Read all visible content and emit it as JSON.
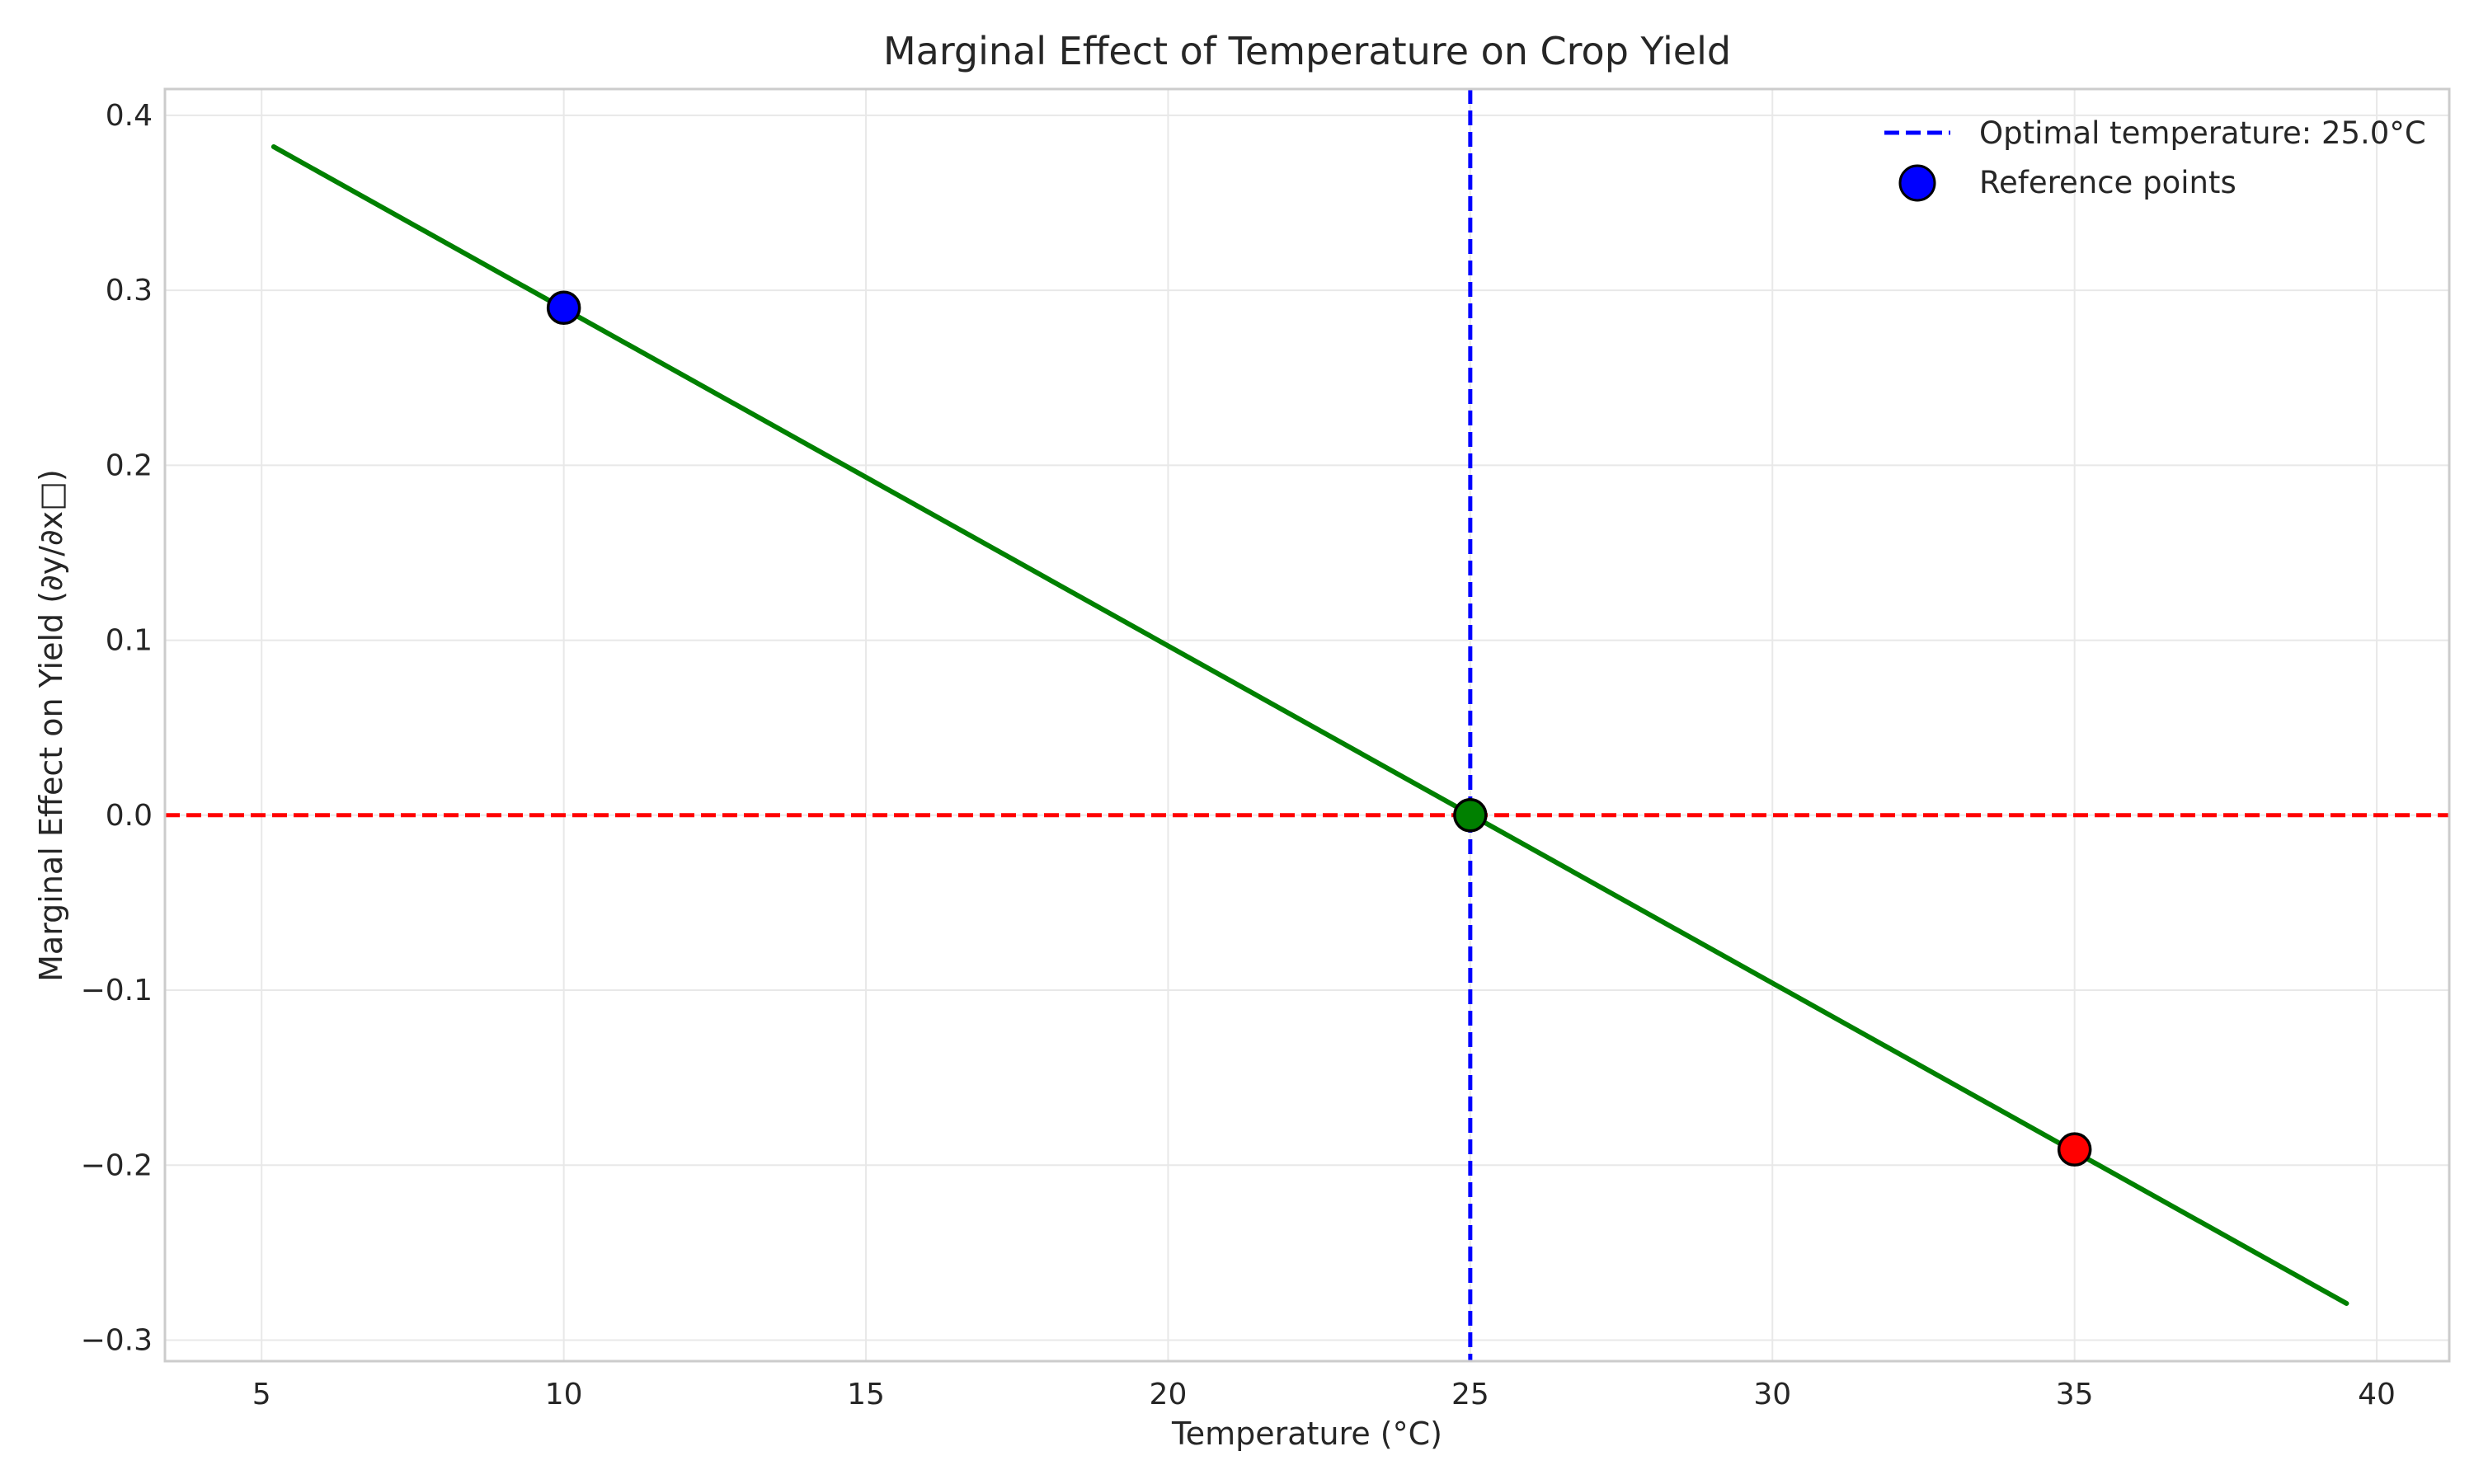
{
  "chart_data": {
    "type": "line",
    "title": "Marginal Effect of Temperature on Crop Yield",
    "xlabel": "Temperature (°C)",
    "ylabel": "Marginal Effect on Yield (∂y/∂x□)",
    "xlim": [
      3.4,
      41.2
    ],
    "ylim": [
      -0.312,
      0.415
    ],
    "xticks": [
      5,
      10,
      15,
      20,
      25,
      30,
      35,
      40
    ],
    "yticks": [
      -0.3,
      -0.2,
      -0.1,
      0.0,
      0.1,
      0.2,
      0.3,
      0.4
    ],
    "xtick_labels": [
      "5",
      "10",
      "15",
      "20",
      "25",
      "30",
      "35",
      "40"
    ],
    "ytick_labels": [
      "−0.3",
      "−0.2",
      "−0.1",
      "0.0",
      "0.1",
      "0.2",
      "0.3",
      "0.4"
    ],
    "grid": true,
    "legend_position": "top-right",
    "series": [
      {
        "kind": "line",
        "color": "#008000",
        "x": [
          5.2,
          39.5
        ],
        "y": [
          0.382,
          -0.279
        ]
      },
      {
        "kind": "scatter",
        "name": "Reference points",
        "legend_color": "#0000ff",
        "points": [
          {
            "x": 10,
            "y": 0.29,
            "color": "#0000ff"
          },
          {
            "x": 25,
            "y": 0.0,
            "color": "#008000"
          },
          {
            "x": 35,
            "y": -0.191,
            "color": "#ff0000"
          }
        ]
      }
    ],
    "reference_lines": [
      {
        "orientation": "horizontal",
        "value": 0.0,
        "color": "#ff0000",
        "style": "dashed"
      },
      {
        "orientation": "vertical",
        "value": 25.0,
        "color": "#0000ff",
        "style": "dashed",
        "label": "Optimal temperature: 25.0°C"
      }
    ]
  }
}
